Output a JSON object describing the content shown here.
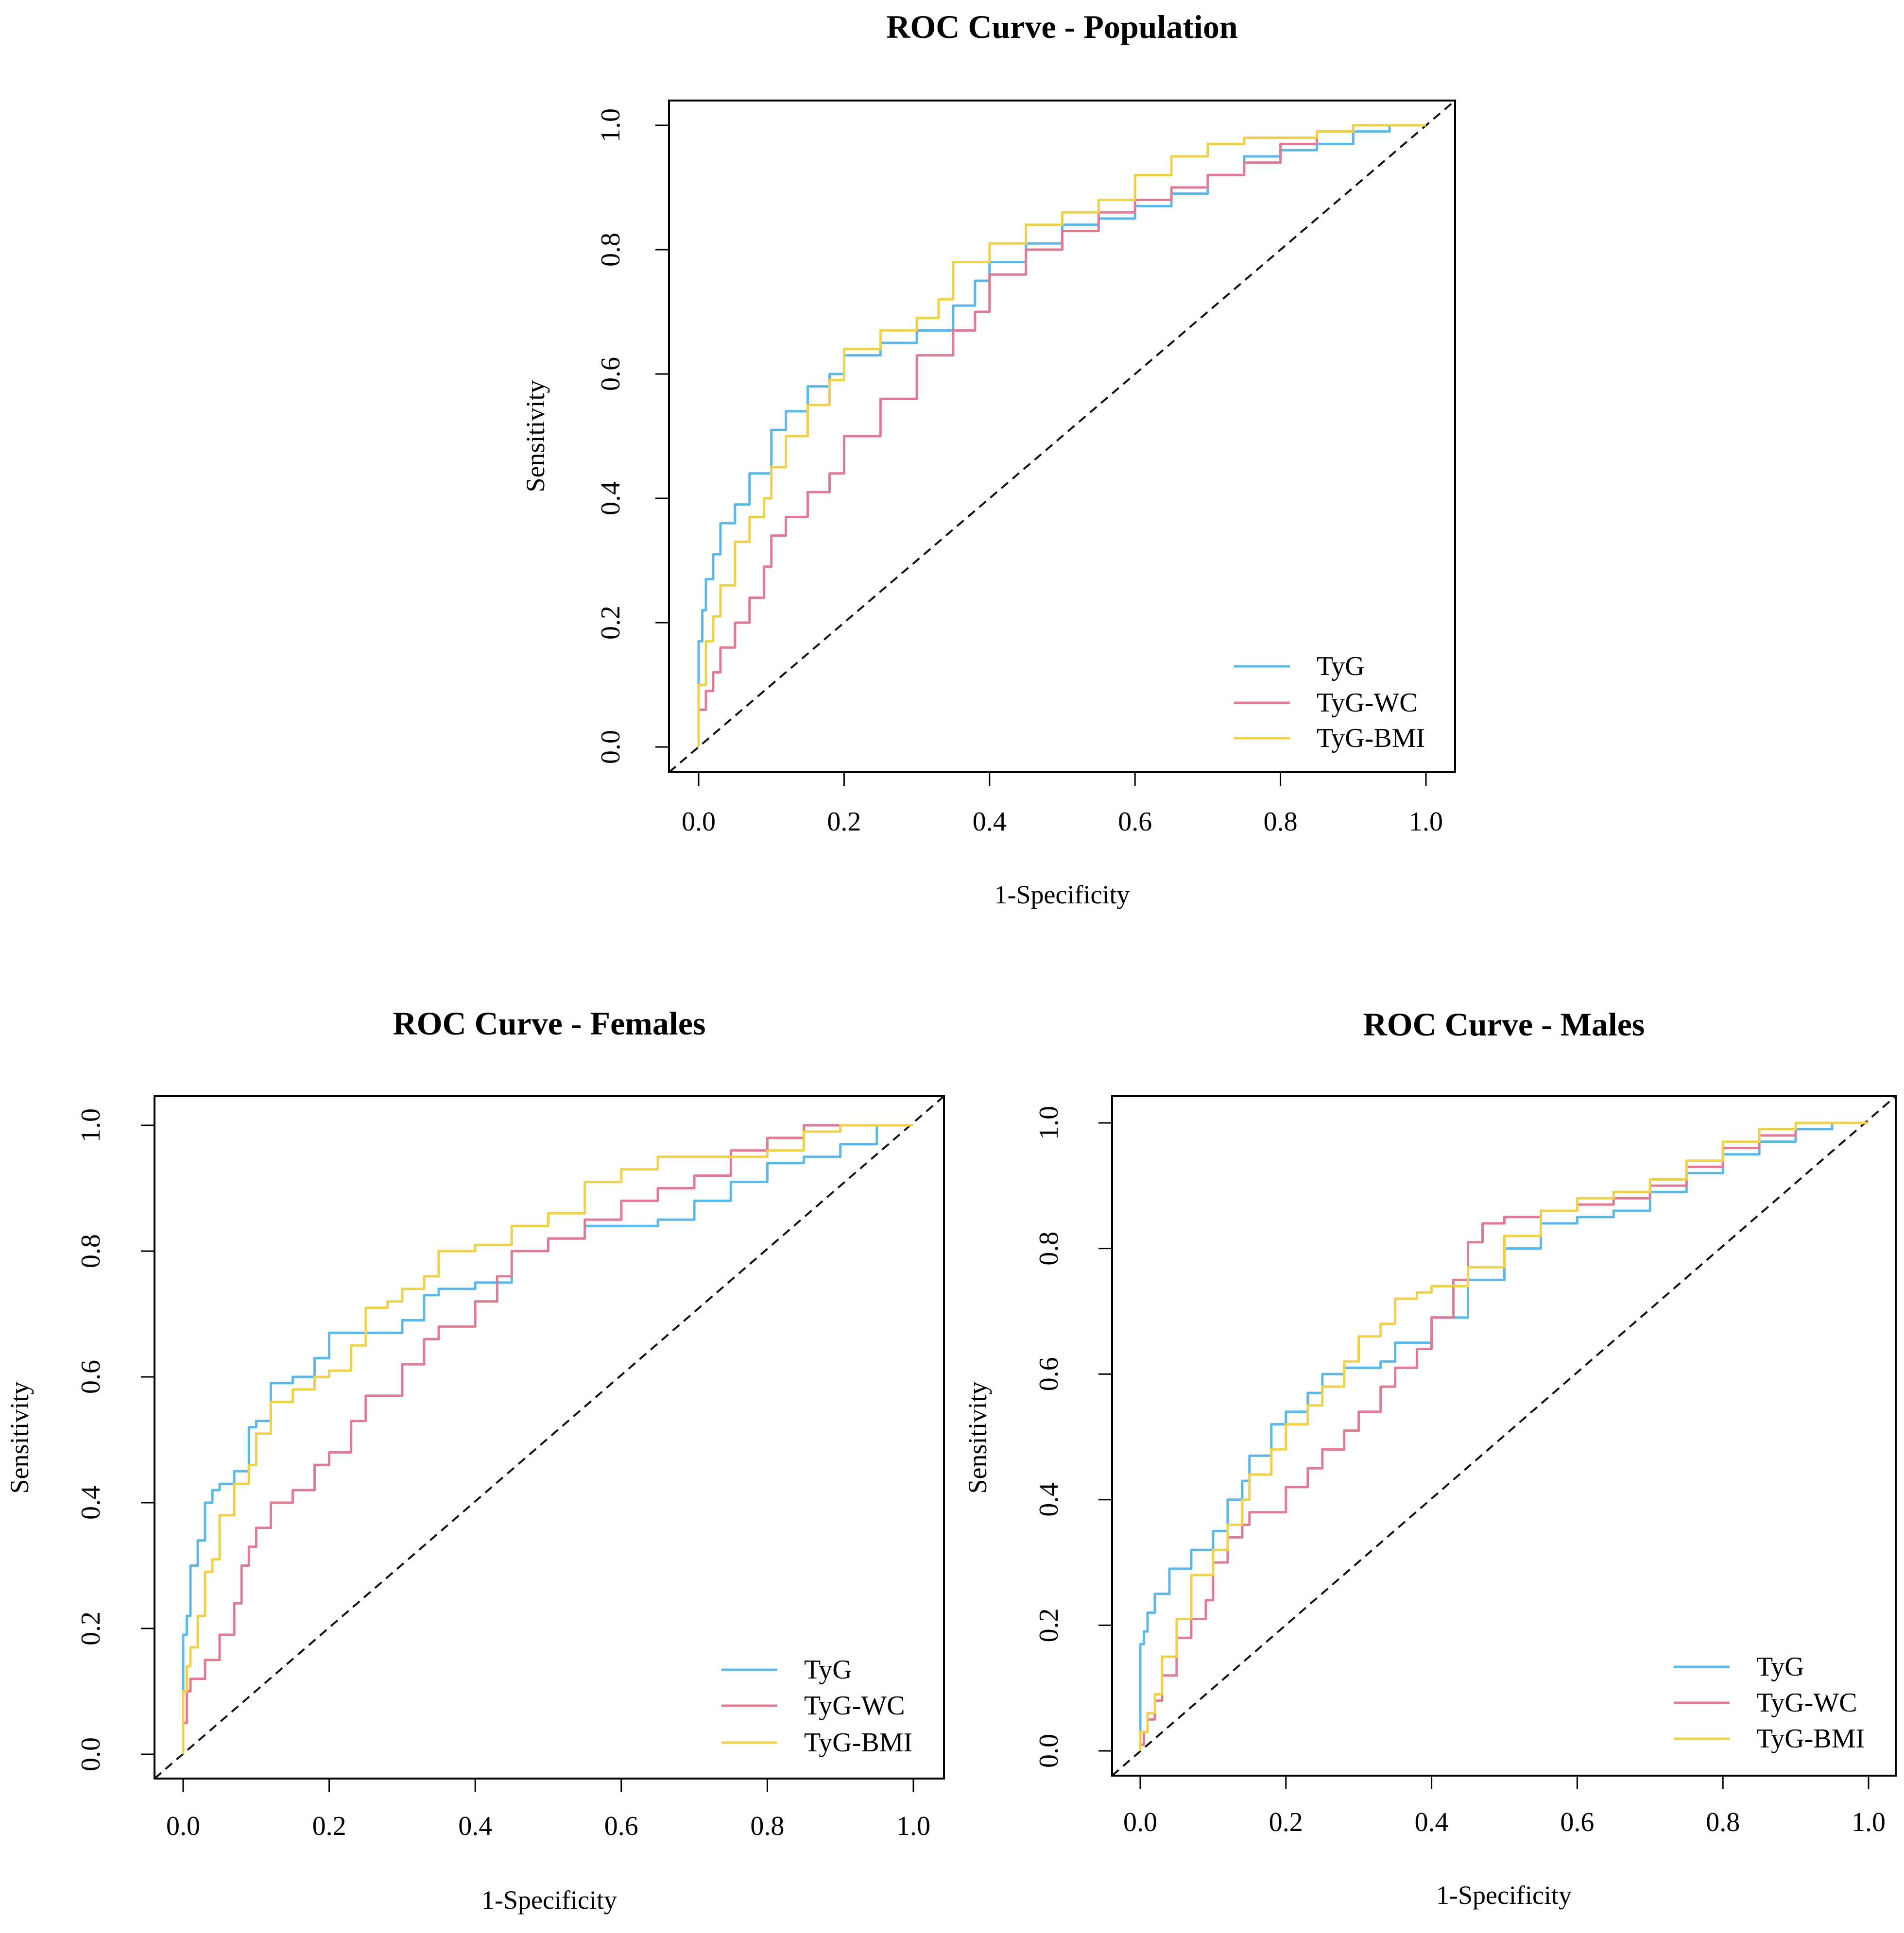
{
  "colors": {
    "TyG": "#5BB8E8",
    "TyG-WC": "#E07A95",
    "TyG-BMI": "#EFD24A"
  },
  "chart_data": [
    {
      "type": "line",
      "title": "ROC Curve - Population",
      "xlabel": "1-Specificity",
      "ylabel": "Sensitivity",
      "xlim": [
        0,
        1
      ],
      "ylim": [
        0,
        1
      ],
      "xticks": [
        "0.0",
        "0.2",
        "0.4",
        "0.6",
        "0.8",
        "1.0"
      ],
      "yticks": [
        "0.0",
        "0.2",
        "0.4",
        "0.6",
        "0.8",
        "1.0"
      ],
      "legend_position": "bottom-right",
      "grid": false,
      "reference_line": "diagonal dashed",
      "series": [
        {
          "name": "TyG",
          "x": [
            0,
            0,
            0.005,
            0.01,
            0.02,
            0.03,
            0.05,
            0.07,
            0.1,
            0.12,
            0.15,
            0.18,
            0.2,
            0.25,
            0.3,
            0.35,
            0.38,
            0.4,
            0.45,
            0.5,
            0.55,
            0.6,
            0.65,
            0.7,
            0.75,
            0.8,
            0.85,
            0.9,
            0.95,
            1.0
          ],
          "y": [
            0,
            0.08,
            0.17,
            0.22,
            0.27,
            0.31,
            0.36,
            0.39,
            0.44,
            0.51,
            0.54,
            0.58,
            0.6,
            0.63,
            0.65,
            0.67,
            0.71,
            0.75,
            0.78,
            0.81,
            0.84,
            0.85,
            0.87,
            0.89,
            0.92,
            0.95,
            0.96,
            0.97,
            0.99,
            1.0
          ]
        },
        {
          "name": "TyG-WC",
          "x": [
            0,
            0.01,
            0.02,
            0.03,
            0.05,
            0.07,
            0.09,
            0.1,
            0.12,
            0.15,
            0.18,
            0.2,
            0.25,
            0.3,
            0.35,
            0.38,
            0.4,
            0.45,
            0.5,
            0.55,
            0.6,
            0.65,
            0.7,
            0.75,
            0.8,
            0.85,
            0.9,
            0.95,
            1.0
          ],
          "y": [
            0,
            0.06,
            0.09,
            0.12,
            0.16,
            0.2,
            0.24,
            0.29,
            0.34,
            0.37,
            0.41,
            0.44,
            0.5,
            0.56,
            0.63,
            0.67,
            0.7,
            0.76,
            0.8,
            0.83,
            0.86,
            0.88,
            0.9,
            0.92,
            0.94,
            0.97,
            0.99,
            1.0,
            1.0
          ]
        },
        {
          "name": "TyG-BMI",
          "x": [
            0,
            0.01,
            0.02,
            0.03,
            0.05,
            0.07,
            0.09,
            0.1,
            0.12,
            0.15,
            0.18,
            0.2,
            0.25,
            0.3,
            0.33,
            0.35,
            0.4,
            0.45,
            0.5,
            0.55,
            0.6,
            0.65,
            0.7,
            0.75,
            0.8,
            0.85,
            0.9,
            0.95,
            1.0
          ],
          "y": [
            0,
            0.1,
            0.17,
            0.21,
            0.26,
            0.33,
            0.37,
            0.4,
            0.45,
            0.5,
            0.55,
            0.59,
            0.64,
            0.67,
            0.69,
            0.72,
            0.78,
            0.81,
            0.84,
            0.86,
            0.88,
            0.92,
            0.95,
            0.97,
            0.98,
            0.98,
            0.99,
            1.0,
            1.0
          ]
        }
      ]
    },
    {
      "type": "line",
      "title": "ROC Curve - Females",
      "xlabel": "1-Specificity",
      "ylabel": "Sensitivity",
      "xlim": [
        0,
        1
      ],
      "ylim": [
        0,
        1
      ],
      "xticks": [
        "0.0",
        "0.2",
        "0.4",
        "0.6",
        "0.8",
        "1.0"
      ],
      "yticks": [
        "0.0",
        "0.2",
        "0.4",
        "0.6",
        "0.8",
        "1.0"
      ],
      "legend_position": "bottom-right",
      "grid": false,
      "reference_line": "diagonal dashed",
      "series": [
        {
          "name": "TyG",
          "x": [
            0,
            0,
            0.005,
            0.01,
            0.02,
            0.03,
            0.04,
            0.05,
            0.07,
            0.09,
            0.1,
            0.12,
            0.15,
            0.18,
            0.2,
            0.25,
            0.3,
            0.33,
            0.35,
            0.4,
            0.45,
            0.5,
            0.55,
            0.6,
            0.65,
            0.7,
            0.75,
            0.8,
            0.85,
            0.9,
            0.95,
            1.0
          ],
          "y": [
            0,
            0.07,
            0.19,
            0.22,
            0.3,
            0.34,
            0.4,
            0.42,
            0.43,
            0.45,
            0.52,
            0.53,
            0.59,
            0.6,
            0.63,
            0.67,
            0.67,
            0.69,
            0.73,
            0.74,
            0.75,
            0.8,
            0.82,
            0.84,
            0.84,
            0.85,
            0.88,
            0.91,
            0.94,
            0.95,
            0.97,
            1.0
          ]
        },
        {
          "name": "TyG-WC",
          "x": [
            0,
            0.005,
            0.01,
            0.03,
            0.05,
            0.07,
            0.08,
            0.09,
            0.1,
            0.12,
            0.15,
            0.18,
            0.2,
            0.23,
            0.25,
            0.3,
            0.33,
            0.35,
            0.4,
            0.43,
            0.45,
            0.5,
            0.55,
            0.6,
            0.65,
            0.7,
            0.75,
            0.8,
            0.85,
            0.9,
            1.0
          ],
          "y": [
            0,
            0.05,
            0.1,
            0.12,
            0.15,
            0.19,
            0.24,
            0.3,
            0.33,
            0.36,
            0.4,
            0.42,
            0.46,
            0.48,
            0.53,
            0.57,
            0.62,
            0.66,
            0.68,
            0.72,
            0.76,
            0.8,
            0.82,
            0.85,
            0.88,
            0.9,
            0.92,
            0.96,
            0.98,
            1.0,
            1.0
          ]
        },
        {
          "name": "TyG-BMI",
          "x": [
            0,
            0.005,
            0.01,
            0.02,
            0.03,
            0.04,
            0.05,
            0.07,
            0.09,
            0.1,
            0.12,
            0.15,
            0.18,
            0.2,
            0.23,
            0.25,
            0.28,
            0.3,
            0.33,
            0.35,
            0.4,
            0.45,
            0.5,
            0.55,
            0.6,
            0.65,
            0.7,
            0.75,
            0.8,
            0.85,
            0.9,
            1.0
          ],
          "y": [
            0,
            0.1,
            0.14,
            0.17,
            0.22,
            0.29,
            0.31,
            0.38,
            0.43,
            0.46,
            0.51,
            0.56,
            0.58,
            0.6,
            0.61,
            0.65,
            0.71,
            0.72,
            0.74,
            0.76,
            0.8,
            0.81,
            0.84,
            0.86,
            0.91,
            0.93,
            0.95,
            0.95,
            0.95,
            0.96,
            0.99,
            1.0
          ]
        }
      ]
    },
    {
      "type": "line",
      "title": "ROC Curve - Males",
      "xlabel": "1-Specificity",
      "ylabel": "Sensitivity",
      "xlim": [
        0,
        1
      ],
      "ylim": [
        0,
        1
      ],
      "xticks": [
        "0.0",
        "0.2",
        "0.4",
        "0.6",
        "0.8",
        "1.0"
      ],
      "yticks": [
        "0.0",
        "0.2",
        "0.4",
        "0.6",
        "0.8",
        "1.0"
      ],
      "legend_position": "bottom-right",
      "grid": false,
      "reference_line": "diagonal dashed",
      "series": [
        {
          "name": "TyG",
          "x": [
            0,
            0,
            0.005,
            0.01,
            0.02,
            0.04,
            0.07,
            0.1,
            0.12,
            0.14,
            0.15,
            0.18,
            0.2,
            0.23,
            0.25,
            0.28,
            0.3,
            0.33,
            0.35,
            0.4,
            0.45,
            0.5,
            0.55,
            0.6,
            0.65,
            0.7,
            0.75,
            0.8,
            0.85,
            0.9,
            0.95,
            1.0
          ],
          "y": [
            0,
            0.14,
            0.17,
            0.19,
            0.22,
            0.25,
            0.29,
            0.32,
            0.35,
            0.4,
            0.43,
            0.47,
            0.52,
            0.54,
            0.57,
            0.6,
            0.61,
            0.61,
            0.62,
            0.65,
            0.69,
            0.75,
            0.8,
            0.84,
            0.85,
            0.86,
            0.89,
            0.92,
            0.95,
            0.97,
            0.99,
            1.0
          ]
        },
        {
          "name": "TyG-WC",
          "x": [
            0,
            0.005,
            0.01,
            0.02,
            0.03,
            0.05,
            0.07,
            0.09,
            0.1,
            0.12,
            0.14,
            0.15,
            0.2,
            0.23,
            0.25,
            0.28,
            0.3,
            0.33,
            0.35,
            0.38,
            0.4,
            0.43,
            0.45,
            0.47,
            0.5,
            0.55,
            0.6,
            0.65,
            0.7,
            0.75,
            0.8,
            0.85,
            0.9,
            0.95,
            1.0
          ],
          "y": [
            0,
            0.01,
            0.03,
            0.05,
            0.08,
            0.12,
            0.18,
            0.21,
            0.24,
            0.3,
            0.34,
            0.36,
            0.38,
            0.42,
            0.45,
            0.48,
            0.51,
            0.54,
            0.58,
            0.61,
            0.64,
            0.69,
            0.75,
            0.81,
            0.84,
            0.85,
            0.86,
            0.87,
            0.88,
            0.9,
            0.93,
            0.96,
            0.98,
            1.0,
            1.0
          ]
        },
        {
          "name": "TyG-BMI",
          "x": [
            0,
            0.01,
            0.02,
            0.03,
            0.05,
            0.07,
            0.1,
            0.12,
            0.14,
            0.15,
            0.18,
            0.2,
            0.23,
            0.25,
            0.28,
            0.3,
            0.33,
            0.35,
            0.38,
            0.4,
            0.45,
            0.5,
            0.55,
            0.6,
            0.65,
            0.7,
            0.75,
            0.8,
            0.85,
            0.9,
            0.95,
            1.0
          ],
          "y": [
            0,
            0.03,
            0.06,
            0.09,
            0.15,
            0.21,
            0.28,
            0.32,
            0.36,
            0.4,
            0.44,
            0.48,
            0.52,
            0.55,
            0.58,
            0.62,
            0.66,
            0.68,
            0.72,
            0.73,
            0.74,
            0.77,
            0.82,
            0.86,
            0.88,
            0.89,
            0.91,
            0.94,
            0.97,
            0.99,
            1.0,
            1.0
          ]
        }
      ]
    }
  ]
}
